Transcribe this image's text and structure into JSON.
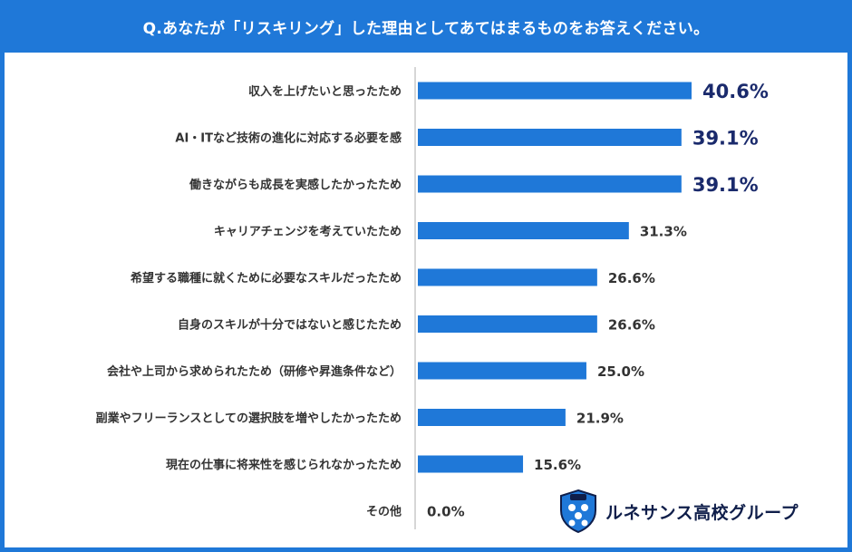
{
  "chart_data": {
    "type": "bar",
    "orientation": "horizontal",
    "title": "Q.あなたが「リスキリング」した理由としてあてはまるものをお答えください。",
    "categories": [
      "収入を上げたいと思ったため",
      "AI・ITなど技術の進化に対応する必要を感",
      "働きながらも成長を実感したかったため",
      "キャリアチェンジを考えていたため",
      "希望する職種に就くために必要なスキルだったため",
      "自身のスキルが十分ではないと感じたため",
      "会社や上司から求められたため（研修や昇進条件など）",
      "副業やフリーランスとしての選択肢を増やしたかったため",
      "現在の仕事に将来性を感じられなかったため",
      "その他"
    ],
    "values": [
      40.6,
      39.1,
      39.1,
      31.3,
      26.6,
      26.6,
      25.0,
      21.9,
      15.6,
      0.0
    ],
    "value_labels": [
      "40.6%",
      "39.1%",
      "39.1%",
      "31.3%",
      "26.6%",
      "26.6%",
      "25.0%",
      "21.9%",
      "15.6%",
      "0.0%"
    ],
    "highlight_top": 3,
    "xlim": [
      0,
      45
    ],
    "grid": false,
    "bar_color": "#1f78d8",
    "highlight_label_color": "#1a2a6c",
    "label_color": "#333333",
    "header_color": "#1f78d8"
  },
  "logo": {
    "text": "ルネサンス高校グループ",
    "icon": "shield-crest-icon"
  }
}
